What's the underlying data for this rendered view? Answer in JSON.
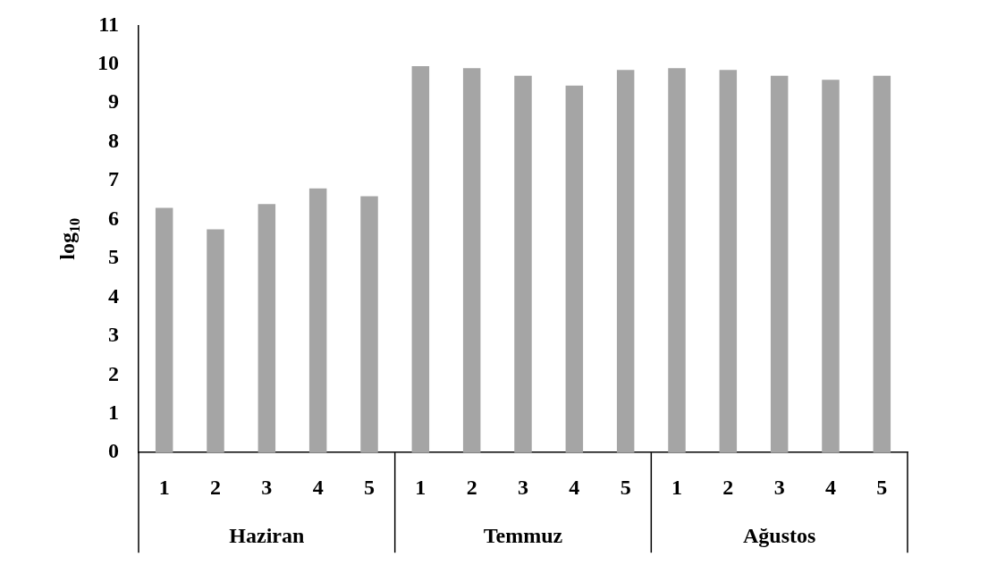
{
  "chart_data": {
    "type": "bar",
    "ylabel": "log$_{10}$",
    "categories": [
      "1",
      "2",
      "3",
      "4",
      "5",
      "1",
      "2",
      "3",
      "4",
      "5",
      "1",
      "2",
      "3",
      "4",
      "5"
    ],
    "values": [
      6.3,
      5.75,
      6.4,
      6.8,
      6.6,
      9.95,
      9.9,
      9.7,
      9.45,
      9.85,
      9.9,
      9.85,
      9.7,
      9.6,
      9.7
    ],
    "color": "#a5a5a5",
    "ylim": [
      0,
      11
    ],
    "yticks": [
      0,
      1,
      2,
      3,
      4,
      5,
      6,
      7,
      8,
      9,
      10,
      11
    ],
    "annotations": [
      "Haziran",
      "Temmuz",
      "Ağustos"
    ]
  }
}
